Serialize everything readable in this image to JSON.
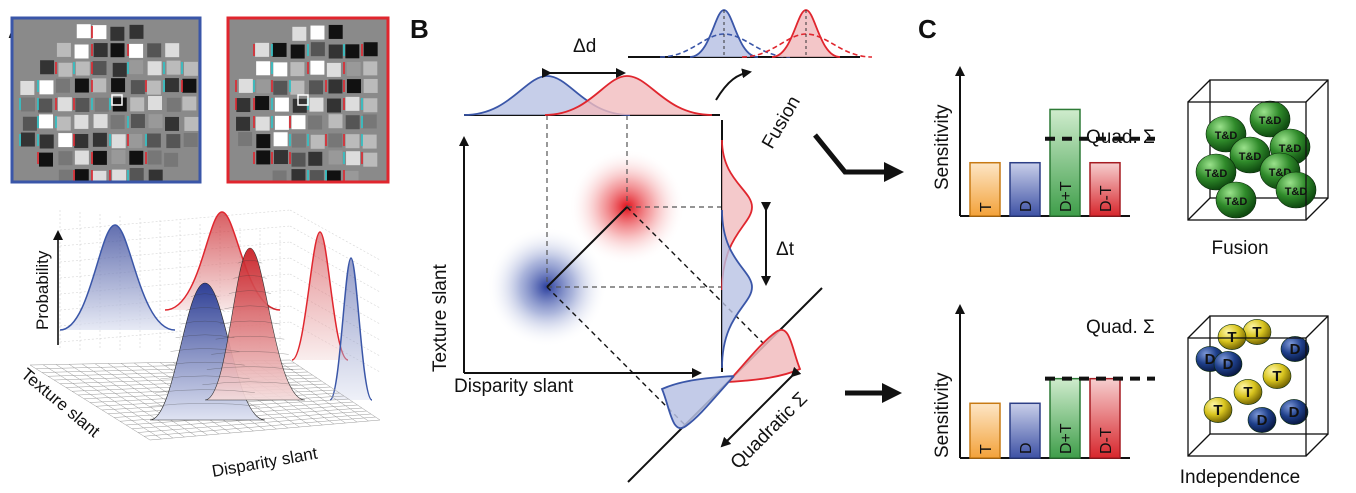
{
  "panels": {
    "a": {
      "letter": "A",
      "surface": {
        "z_label": "Probability",
        "left_axis_label": "Texture slant",
        "right_axis_label": "Disparity slant"
      }
    },
    "b": {
      "letter": "B",
      "x_label": "Disparity slant",
      "y_label": "Texture slant",
      "delta_d": "Δd",
      "delta_t": "Δt",
      "fusion": "Fusion",
      "quadratic_sum": "Quadratic Σ"
    },
    "c": {
      "letter": "C",
      "top": {
        "y_label": "Sensitivity",
        "quad_label": "Quad. Σ",
        "bars": [
          "T",
          "D",
          "D+T",
          "D-T"
        ],
        "bar_values": [
          1.0,
          1.0,
          2.0,
          1.0
        ],
        "quad_value": 1.45,
        "sphere_label": "T&D",
        "caption": "Fusion"
      },
      "bottom": {
        "y_label": "Sensitivity",
        "quad_label": "Quad. Σ",
        "bars": [
          "T",
          "D",
          "D+T",
          "D-T"
        ],
        "bar_values": [
          1.0,
          1.0,
          1.45,
          1.45
        ],
        "quad_value": 1.45,
        "sphere_labels": [
          "T",
          "D"
        ],
        "caption": "Independence"
      }
    }
  },
  "colors": {
    "blue": "#3a56a8",
    "red": "#e0262e",
    "orange": "#f2a33a",
    "green": "#3f9e4a",
    "sphere_green": "#2f8a2a",
    "sphere_yellow": "#d8c41e",
    "sphere_blue": "#1e3f8a"
  }
}
